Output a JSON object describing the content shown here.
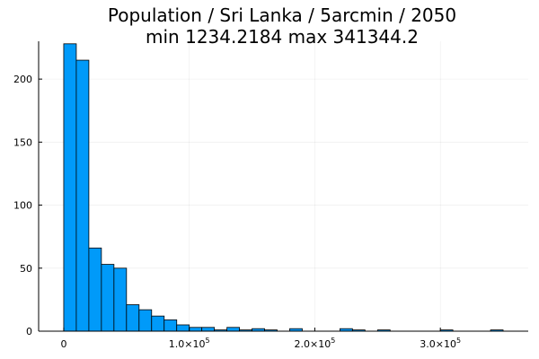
{
  "chart_data": {
    "type": "bar",
    "title_line1": "Population / Sri Lanka / 5arcmin / 2050",
    "title_line2": "min 1234.2184  max 341344.2",
    "xlabel": "",
    "ylabel": "",
    "bin_width": 10000,
    "bins_start": [
      0,
      10000,
      20000,
      30000,
      40000,
      50000,
      60000,
      70000,
      80000,
      90000,
      100000,
      110000,
      120000,
      130000,
      140000,
      150000,
      160000,
      170000,
      180000,
      190000,
      200000,
      210000,
      220000,
      230000,
      240000,
      250000,
      260000,
      270000,
      280000,
      290000,
      300000,
      310000,
      320000,
      330000,
      340000
    ],
    "values": [
      228,
      215,
      66,
      53,
      50,
      21,
      17,
      12,
      9,
      5,
      3,
      3,
      1,
      3,
      1,
      2,
      1,
      0,
      2,
      0,
      0,
      0,
      2,
      1,
      0,
      1,
      0,
      0,
      0,
      0,
      1,
      0,
      0,
      0,
      1
    ],
    "xlim": [
      -20000,
      370000
    ],
    "ylim": [
      0,
      230
    ],
    "x_ticks": [
      0,
      100000,
      200000,
      300000
    ],
    "x_tick_labels": [
      {
        "text": "0",
        "mantissa": "",
        "exp": ""
      },
      {
        "text": "",
        "mantissa": "1.0×10",
        "exp": "5"
      },
      {
        "text": "",
        "mantissa": "2.0×10",
        "exp": "5"
      },
      {
        "text": "",
        "mantissa": "3.0×10",
        "exp": "5"
      }
    ],
    "y_ticks": [
      0,
      50,
      100,
      150,
      200
    ],
    "y_tick_labels": [
      "0",
      "50",
      "100",
      "150",
      "200"
    ],
    "grid": true,
    "legend": "none",
    "bar_color": "#009af9",
    "bar_stroke": "#000000"
  }
}
